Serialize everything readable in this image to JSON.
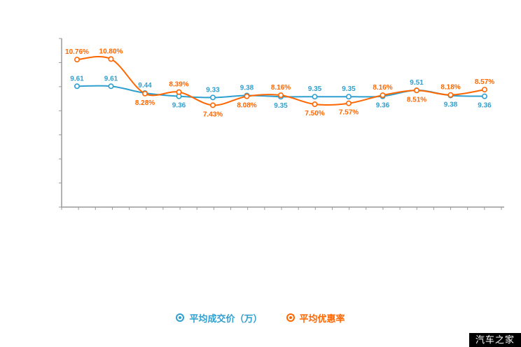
{
  "watermark": {
    "text": "汽车之家",
    "bg": "#000000",
    "color": "#ffffff"
  },
  "legend": {
    "items": [
      {
        "label": "平均成交价（万）",
        "color": "#2f9fd0"
      },
      {
        "label": "平均优惠率",
        "color": "#ff6600"
      }
    ]
  },
  "chart_data": {
    "type": "line",
    "title": "",
    "xlabel": "",
    "ylabel": "",
    "categories": [
      "",
      "",
      "",
      "",
      "",
      "",
      "",
      "",
      "",
      "",
      "",
      "",
      ""
    ],
    "series": [
      {
        "name": "平均成交价（万）",
        "color": "#2f9fd0",
        "unit": "万",
        "values": [
          9.61,
          9.61,
          9.44,
          9.36,
          9.33,
          9.38,
          9.35,
          9.35,
          9.35,
          9.36,
          9.51,
          9.38,
          9.36
        ]
      },
      {
        "name": "平均优惠率",
        "color": "#ff6600",
        "unit": "%",
        "values": [
          10.76,
          10.8,
          8.28,
          8.39,
          7.43,
          8.08,
          8.16,
          7.5,
          7.57,
          8.16,
          8.51,
          8.18,
          8.57
        ]
      }
    ],
    "ylim_price": [
      6.6,
      10.8
    ],
    "ylim_discount": [
      0,
      12.3
    ],
    "grid": false,
    "legend_position": "bottom",
    "axis_color": "#999999"
  }
}
